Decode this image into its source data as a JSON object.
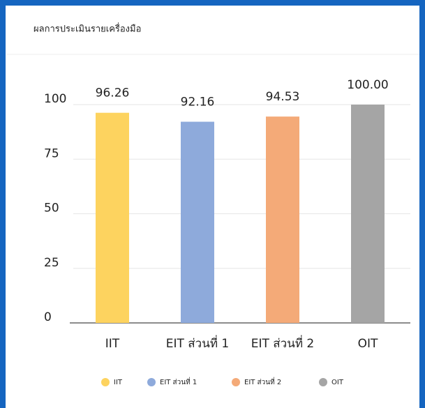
{
  "chart_data": {
    "type": "bar",
    "title": "ผลการประเมินรายเครื่องมือ",
    "categories": [
      "IIT",
      "EIT ส่วนที่ 1",
      "EIT ส่วนที่ 2",
      "OIT"
    ],
    "values": [
      96.26,
      92.16,
      94.53,
      100
    ],
    "value_labels": [
      "96.26",
      "92.16",
      "94.53",
      "100.00"
    ],
    "colors": [
      "#fdd35f",
      "#8eaadb",
      "#f4aa78",
      "#a5a5a5"
    ],
    "ylim": [
      0,
      100
    ],
    "yticks": [
      0,
      25,
      50,
      75,
      100
    ],
    "grid": true,
    "legend": "bottom"
  }
}
